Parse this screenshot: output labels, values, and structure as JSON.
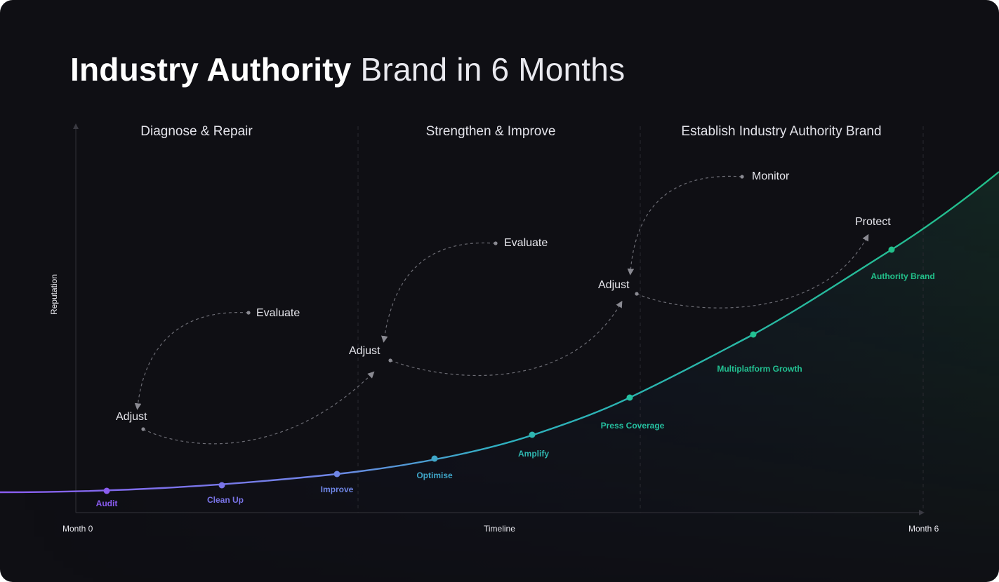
{
  "title": {
    "bold": "Industry Authority",
    "rest": "Brand in 6 Months"
  },
  "phases": [
    "Diagnose & Repair",
    "Strengthen & Improve",
    "Establish Industry Authority Brand"
  ],
  "axes": {
    "y_label": "Reputation",
    "x_label": "Timeline",
    "x_start": "Month 0",
    "x_end": "Month 6"
  },
  "loops": [
    {
      "adjust": "Adjust",
      "evaluate": "Evaluate"
    },
    {
      "adjust": "Adjust",
      "evaluate": "Evaluate"
    },
    {
      "adjust": "Adjust",
      "evaluate": "Monitor",
      "protect": "Protect"
    }
  ],
  "milestones": [
    {
      "label": "Audit",
      "color": "#8a5cf0"
    },
    {
      "label": "Clean Up",
      "color": "#7a74e8"
    },
    {
      "label": "Improve",
      "color": "#6f86e6"
    },
    {
      "label": "Optimise",
      "color": "#3fa6c8"
    },
    {
      "label": "Amplify",
      "color": "#2fb6b0"
    },
    {
      "label": "Press Coverage",
      "color": "#25c0a0"
    },
    {
      "label": "Multiplatform Growth",
      "color": "#22c192"
    },
    {
      "label": "Authority Brand",
      "color": "#22c08a"
    }
  ],
  "colors": {
    "background": "#0f0f14",
    "curve_start": "#8a5cf0",
    "curve_end": "#22c08a",
    "loop_arrow": "#8a8a92"
  }
}
